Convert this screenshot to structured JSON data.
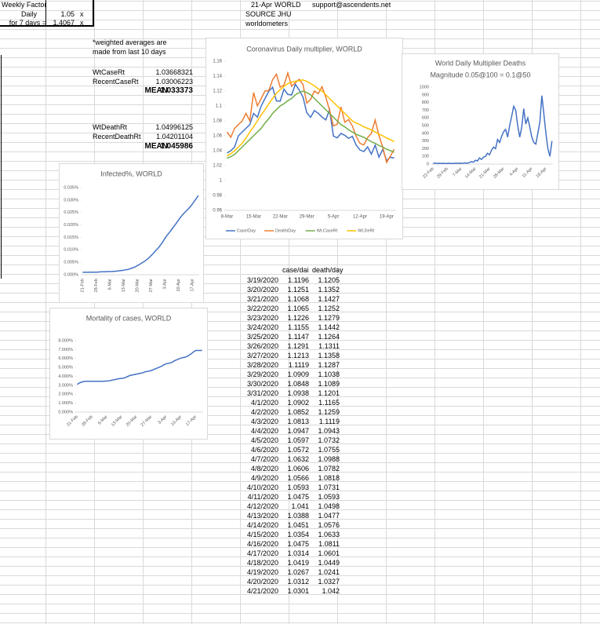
{
  "header": {
    "label": "Weekly Factor",
    "daily_label": "Daily",
    "daily_value": 1.05,
    "daily_unit": "x",
    "week_label": "for 7 days =",
    "week_value": 1.4067,
    "week_unit": "x",
    "date": "21-Apr",
    "region": "WORLD",
    "email": "support@ascendents.net",
    "source": "SOURCE JHU",
    "source2": "worldometers"
  },
  "notes": [
    "*weighted averages are",
    "made from last 10 days"
  ],
  "stats": [
    {
      "label": "WtCaseRt",
      "value": 1.03668321
    },
    {
      "label": "RecentCaseRt",
      "value": 1.03006223
    },
    {
      "label": "MEAN",
      "value": 1.033373
    },
    {
      "label": "WtDeathRt",
      "value": 1.04996125
    },
    {
      "label": "RecentDeathRt",
      "value": 1.04201104
    },
    {
      "label": "MEAN",
      "value": 1.045986
    }
  ],
  "table": {
    "columns": [
      "case/dai",
      "death/day"
    ],
    "rows": [
      [
        "3/19/2020",
        1.1196,
        1.1205
      ],
      [
        "3/20/2020",
        1.1251,
        1.1352
      ],
      [
        "3/21/2020",
        1.1068,
        1.1427
      ],
      [
        "3/22/2020",
        1.1065,
        1.1252
      ],
      [
        "3/23/2020",
        1.1226,
        1.1279
      ],
      [
        "3/24/2020",
        1.1155,
        1.1442
      ],
      [
        "3/25/2020",
        1.1147,
        1.1264
      ],
      [
        "3/26/2020",
        1.1291,
        1.1311
      ],
      [
        "3/27/2020",
        1.1213,
        1.1358
      ],
      [
        "3/28/2020",
        1.1119,
        1.1287
      ],
      [
        "3/29/2020",
        1.0909,
        1.1038
      ],
      [
        "3/30/2020",
        1.0848,
        1.1089
      ],
      [
        "3/31/2020",
        1.0938,
        1.1201
      ],
      [
        "4/1/2020",
        1.0902,
        1.1165
      ],
      [
        "4/2/2020",
        1.0852,
        1.1259
      ],
      [
        "4/3/2020",
        1.0813,
        1.1119
      ],
      [
        "4/4/2020",
        1.0947,
        1.0943
      ],
      [
        "4/5/2020",
        1.0597,
        1.0732
      ],
      [
        "4/6/2020",
        1.0572,
        1.0755
      ],
      [
        "4/7/2020",
        1.0632,
        1.0988
      ],
      [
        "4/8/2020",
        1.0606,
        1.0782
      ],
      [
        "4/9/2020",
        1.0566,
        1.0818
      ],
      [
        "4/10/2020",
        1.0593,
        1.0731
      ],
      [
        "4/11/2020",
        1.0475,
        1.0593
      ],
      [
        "4/12/2020",
        1.041,
        1.0498
      ],
      [
        "4/13/2020",
        1.0388,
        1.0477
      ],
      [
        "4/14/2020",
        1.0451,
        1.0576
      ],
      [
        "4/15/2020",
        1.0354,
        1.0633
      ],
      [
        "4/16/2020",
        1.0475,
        1.0811
      ],
      [
        "4/17/2020",
        1.0314,
        1.0601
      ],
      [
        "4/18/2020",
        1.0419,
        1.0449
      ],
      [
        "4/19/2020",
        1.0267,
        1.0241
      ],
      [
        "4/20/2020",
        1.0312,
        1.0327
      ],
      [
        "4/21/2020",
        1.0301,
        1.042
      ]
    ]
  },
  "chart_data": [
    {
      "type": "line",
      "title": "Coronavirus Daily multiplier, WORLD",
      "legend": "bottom",
      "categories": [
        "8-Mar",
        null,
        null,
        null,
        null,
        null,
        null,
        "15-Mar",
        null,
        null,
        null,
        null,
        null,
        null,
        "22-Mar",
        null,
        null,
        null,
        null,
        null,
        null,
        "29-Mar",
        null,
        null,
        null,
        null,
        null,
        null,
        "5-Apr",
        null,
        null,
        null,
        null,
        null,
        null,
        "12-Apr",
        null,
        null,
        null,
        null,
        null,
        null,
        "19-Apr",
        null,
        null
      ],
      "ylim": [
        0.96,
        1.16
      ],
      "yticks": [
        0.96,
        0.98,
        1,
        1.02,
        1.04,
        1.06,
        1.08,
        1.1,
        1.12,
        1.14,
        1.16
      ],
      "series": [
        {
          "name": "Case/Day",
          "color": "#4472c4",
          "values": [
            1.037,
            1.04,
            1.045,
            1.06,
            1.065,
            1.07,
            1.075,
            1.09,
            1.085,
            1.1,
            1.11,
            1.1196,
            1.1251,
            1.1068,
            1.1065,
            1.1226,
            1.1155,
            1.1147,
            1.1291,
            1.1213,
            1.1119,
            1.0909,
            1.0848,
            1.0938,
            1.0902,
            1.0852,
            1.0813,
            1.0947,
            1.0597,
            1.0572,
            1.0632,
            1.0606,
            1.0566,
            1.0593,
            1.0475,
            1.041,
            1.0388,
            1.0451,
            1.0354,
            1.0475,
            1.0314,
            1.0419,
            1.0267,
            1.0312,
            1.0301
          ]
        },
        {
          "name": "Death/Day",
          "color": "#ed7d31",
          "values": [
            1.065,
            1.058,
            1.07,
            1.075,
            1.08,
            1.09,
            1.08,
            1.118,
            1.1,
            1.11,
            1.12,
            1.1205,
            1.1352,
            1.1427,
            1.1252,
            1.1279,
            1.1442,
            1.1264,
            1.1311,
            1.1358,
            1.1287,
            1.1038,
            1.1089,
            1.1201,
            1.1165,
            1.1259,
            1.1119,
            1.0943,
            1.0732,
            1.0755,
            1.0988,
            1.0782,
            1.0818,
            1.0731,
            1.0593,
            1.0498,
            1.0477,
            1.0576,
            1.0633,
            1.0811,
            1.0601,
            1.0449,
            1.0241,
            1.0327,
            1.042
          ]
        },
        {
          "name": "Wt.CaseRt",
          "color": "#70ad47",
          "values": [
            1.03,
            1.032,
            1.035,
            1.04,
            1.045,
            1.05,
            1.055,
            1.06,
            1.065,
            1.07,
            1.077,
            1.083,
            1.09,
            1.095,
            1.1,
            1.103,
            1.107,
            1.11,
            1.115,
            1.118,
            1.12,
            1.118,
            1.115,
            1.11,
            1.105,
            1.1,
            1.095,
            1.09,
            1.085,
            1.08,
            1.075,
            1.072,
            1.068,
            1.065,
            1.062,
            1.06,
            1.058,
            1.055,
            1.052,
            1.05,
            1.047,
            1.045,
            1.042,
            1.04,
            1.038
          ]
        },
        {
          "name": "Wt.DeRt",
          "color": "#ffc000",
          "values": [
            1.033,
            1.036,
            1.04,
            1.045,
            1.05,
            1.057,
            1.065,
            1.072,
            1.08,
            1.088,
            1.095,
            1.103,
            1.11,
            1.117,
            1.122,
            1.126,
            1.13,
            1.132,
            1.133,
            1.134,
            1.135,
            1.133,
            1.13,
            1.127,
            1.123,
            1.12,
            1.115,
            1.11,
            1.105,
            1.1,
            1.095,
            1.09,
            1.085,
            1.08,
            1.077,
            1.075,
            1.072,
            1.07,
            1.068,
            1.065,
            1.062,
            1.06,
            1.057,
            1.055,
            1.052
          ]
        }
      ]
    },
    {
      "type": "line",
      "title": "World Daily Multiplier Deaths",
      "subtitle": "Magnitude 0.05@100 = 0.1@50",
      "color": "#4472c4",
      "categories": [
        "22-Feb",
        null,
        null,
        null,
        null,
        null,
        null,
        "29-Feb",
        null,
        null,
        null,
        null,
        null,
        null,
        "7-Mar",
        null,
        null,
        null,
        null,
        null,
        null,
        "14-Mar",
        null,
        null,
        null,
        null,
        null,
        null,
        "21-Mar",
        null,
        null,
        null,
        null,
        null,
        null,
        "28-Mar",
        null,
        null,
        null,
        null,
        null,
        null,
        "4-Apr",
        null,
        null,
        null,
        null,
        null,
        null,
        "11-Apr",
        null,
        null,
        null,
        null,
        null,
        null,
        "18-Apr",
        null,
        null,
        null
      ],
      "ylim": [
        0,
        1000
      ],
      "yticks": [
        0,
        100,
        200,
        300,
        400,
        500,
        600,
        700,
        800,
        900,
        1000
      ],
      "values": [
        10,
        12,
        8,
        10,
        8,
        10,
        8,
        8,
        10,
        8,
        8,
        10,
        10,
        12,
        10,
        12,
        15,
        10,
        20,
        30,
        25,
        50,
        40,
        80,
        60,
        90,
        100,
        140,
        120,
        180,
        220,
        200,
        320,
        280,
        360,
        420,
        450,
        350,
        500,
        620,
        750,
        700,
        500,
        350,
        480,
        720,
        520,
        600,
        480,
        350,
        280,
        260,
        400,
        550,
        890,
        650,
        400,
        200,
        100,
        300
      ]
    },
    {
      "type": "line",
      "title": "Infected%, WORLD",
      "color": "#4472c4",
      "categories": [
        "21-Feb",
        null,
        null,
        null,
        null,
        null,
        null,
        "28-Feb",
        null,
        null,
        null,
        null,
        null,
        null,
        "6-Mar",
        null,
        null,
        null,
        null,
        null,
        null,
        "13-Mar",
        null,
        null,
        null,
        null,
        null,
        null,
        "20-Mar",
        null,
        null,
        null,
        null,
        null,
        null,
        "27-Mar",
        null,
        null,
        null,
        null,
        null,
        null,
        "3-Apr",
        null,
        null,
        null,
        null,
        null,
        null,
        "10-Apr",
        null,
        null,
        null,
        null,
        null,
        null,
        "17-Apr",
        null,
        null,
        null
      ],
      "ylim": [
        0,
        0.035
      ],
      "yticks": [
        {
          "value": 0,
          "label": "0.000%"
        },
        {
          "value": 0.005,
          "label": "0.005%"
        },
        {
          "value": 0.01,
          "label": "0.010%"
        },
        {
          "value": 0.015,
          "label": "0.015%"
        },
        {
          "value": 0.02,
          "label": "0.020%"
        },
        {
          "value": 0.025,
          "label": "0.025%"
        },
        {
          "value": 0.03,
          "label": "0.030%"
        },
        {
          "value": 0.035,
          "label": "0.035%"
        }
      ],
      "values": [
        0.001,
        0.001,
        0.001,
        0.001,
        0.00102,
        0.00102,
        0.00103,
        0.00104,
        0.00105,
        0.00115,
        0.00118,
        0.0012,
        0.00122,
        0.00125,
        0.00128,
        0.0013,
        0.00135,
        0.0014,
        0.0015,
        0.0016,
        0.0017,
        0.0018,
        0.002,
        0.0021,
        0.0023,
        0.0026,
        0.0029,
        0.0032,
        0.0037,
        0.0041,
        0.0046,
        0.0051,
        0.0056,
        0.0062,
        0.0069,
        0.0077,
        0.0085,
        0.0094,
        0.0102,
        0.0111,
        0.0122,
        0.0133,
        0.0146,
        0.0157,
        0.0167,
        0.0177,
        0.0188,
        0.0198,
        0.0209,
        0.022,
        0.0231,
        0.0241,
        0.0249,
        0.0257,
        0.0265,
        0.0274,
        0.0284,
        0.0295,
        0.0306,
        0.0318
      ]
    },
    {
      "type": "line",
      "title": "Mortality of cases, WORLD",
      "color": "#4472c4",
      "categories": [
        "21-Feb",
        null,
        null,
        null,
        null,
        null,
        null,
        "28-Feb",
        null,
        null,
        null,
        null,
        null,
        null,
        "6-Mar",
        null,
        null,
        null,
        null,
        null,
        null,
        "13-Mar",
        null,
        null,
        null,
        null,
        null,
        null,
        "20-Mar",
        null,
        null,
        null,
        null,
        null,
        null,
        "27-Mar",
        null,
        null,
        null,
        null,
        null,
        null,
        "3-Apr",
        null,
        null,
        null,
        null,
        null,
        null,
        "10-Apr",
        null,
        null,
        null,
        null,
        null,
        null,
        "17-Apr",
        null,
        null,
        null
      ],
      "ylim": [
        0,
        8
      ],
      "yticks": [
        {
          "value": 0,
          "label": "0.000%"
        },
        {
          "value": 1,
          "label": "1.000%"
        },
        {
          "value": 2,
          "label": "2.000%"
        },
        {
          "value": 3,
          "label": "3.000%"
        },
        {
          "value": 4,
          "label": "4.000%"
        },
        {
          "value": 5,
          "label": "5.000%"
        },
        {
          "value": 6,
          "label": "6.000%"
        },
        {
          "value": 7,
          "label": "7.000%"
        },
        {
          "value": 8,
          "label": "8.000%"
        }
      ],
      "values": [
        3.1,
        3.25,
        3.35,
        3.42,
        3.45,
        3.45,
        3.45,
        3.45,
        3.45,
        3.45,
        3.45,
        3.45,
        3.45,
        3.46,
        3.48,
        3.5,
        3.55,
        3.6,
        3.65,
        3.7,
        3.75,
        3.78,
        3.8,
        3.9,
        4,
        4.1,
        4.15,
        4.2,
        4.25,
        4.3,
        4.35,
        4.4,
        4.5,
        4.55,
        4.6,
        4.65,
        4.75,
        4.85,
        4.95,
        5.05,
        5.15,
        5.3,
        5.4,
        5.45,
        5.5,
        5.6,
        5.75,
        5.85,
        5.95,
        6.05,
        6.1,
        6.15,
        6.25,
        6.4,
        6.55,
        6.75,
        6.9,
        6.9,
        6.9,
        6.9
      ]
    }
  ]
}
